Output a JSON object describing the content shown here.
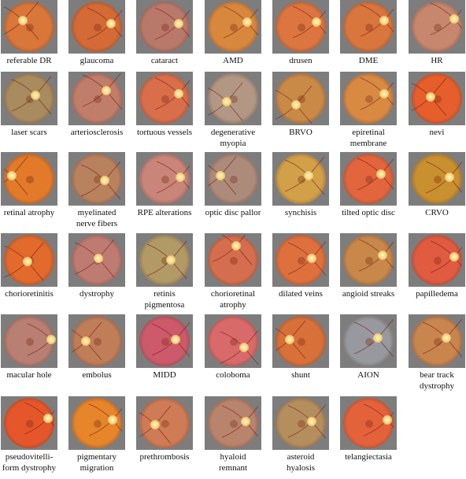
{
  "figure": {
    "images": [
      {
        "label_lines": [
          "referable DR"
        ],
        "color": "#d9763a",
        "icon": "fundus-photo"
      },
      {
        "label_lines": [
          "glaucoma"
        ],
        "color": "#d46a35",
        "icon": "fundus-photo"
      },
      {
        "label_lines": [
          "cataract"
        ],
        "color": "#b9796a",
        "icon": "fundus-photo"
      },
      {
        "label_lines": [
          "AMD"
        ],
        "color": "#d8883c",
        "icon": "fundus-photo"
      },
      {
        "label_lines": [
          "drusen"
        ],
        "color": "#dc7540",
        "icon": "fundus-photo"
      },
      {
        "label_lines": [
          "DME"
        ],
        "color": "#d9763e",
        "icon": "fundus-photo"
      },
      {
        "label_lines": [
          "HR"
        ],
        "color": "#c6876e",
        "icon": "fundus-photo"
      },
      {
        "label_lines": [
          "laser scars"
        ],
        "color": "#a88b5e",
        "icon": "fundus-photo"
      },
      {
        "label_lines": [
          "arteriosclerosis"
        ],
        "color": "#c07d6a",
        "icon": "fundus-photo"
      },
      {
        "label_lines": [
          "tortuous vessels"
        ],
        "color": "#d86e4a",
        "icon": "fundus-photo"
      },
      {
        "label_lines": [
          "degenerative",
          "myopia"
        ],
        "color": "#b29884",
        "icon": "fundus-photo"
      },
      {
        "label_lines": [
          "BRVO"
        ],
        "color": "#c98a48",
        "icon": "fundus-photo"
      },
      {
        "label_lines": [
          "epiretinal",
          "membrane"
        ],
        "color": "#d98a42",
        "icon": "fundus-photo"
      },
      {
        "label_lines": [
          "nevi"
        ],
        "color": "#e55e2c",
        "icon": "fundus-photo"
      },
      {
        "label_lines": [
          "retinal atrophy"
        ],
        "color": "#e27a2a",
        "icon": "fundus-photo"
      },
      {
        "label_lines": [
          "myelinated",
          "nerve fibers"
        ],
        "color": "#b9825e",
        "icon": "fundus-photo"
      },
      {
        "label_lines": [
          "RPE alterations"
        ],
        "color": "#c98579",
        "icon": "fundus-photo"
      },
      {
        "label_lines": [
          "optic disc pallor"
        ],
        "color": "#ad8b7b",
        "icon": "fundus-photo"
      },
      {
        "label_lines": [
          "synchisis"
        ],
        "color": "#d2a048",
        "icon": "fundus-photo"
      },
      {
        "label_lines": [
          "tilted optic disc"
        ],
        "color": "#e2653e",
        "icon": "fundus-photo"
      },
      {
        "label_lines": [
          "CRVO"
        ],
        "color": "#c8902f",
        "icon": "fundus-photo"
      },
      {
        "label_lines": [
          "chorioretinitis"
        ],
        "color": "#e16a2c",
        "icon": "fundus-photo"
      },
      {
        "label_lines": [
          "dystrophy"
        ],
        "color": "#bd7b72",
        "icon": "fundus-photo"
      },
      {
        "label_lines": [
          "retinis",
          "pigmentosa"
        ],
        "color": "#b29a66",
        "icon": "fundus-photo"
      },
      {
        "label_lines": [
          "chorioretinal",
          "atrophy"
        ],
        "color": "#d56e4e",
        "icon": "fundus-photo"
      },
      {
        "label_lines": [
          "dilated veins"
        ],
        "color": "#de703e",
        "icon": "fundus-photo"
      },
      {
        "label_lines": [
          "angioid streaks"
        ],
        "color": "#c7884a",
        "icon": "fundus-photo"
      },
      {
        "label_lines": [
          "papilledema"
        ],
        "color": "#e05b40",
        "icon": "fundus-photo"
      },
      {
        "label_lines": [
          "macular hole"
        ],
        "color": "#b87f72",
        "icon": "fundus-photo"
      },
      {
        "label_lines": [
          "embolus"
        ],
        "color": "#bf7e58",
        "icon": "fundus-photo"
      },
      {
        "label_lines": [
          "MIDD"
        ],
        "color": "#cc5a6a",
        "icon": "fundus-photo"
      },
      {
        "label_lines": [
          "coloboma"
        ],
        "color": "#d96a6a",
        "icon": "fundus-photo"
      },
      {
        "label_lines": [
          "shunt"
        ],
        "color": "#d8703a",
        "icon": "fundus-photo"
      },
      {
        "label_lines": [
          "AION"
        ],
        "color": "#97999f",
        "icon": "fundus-photo"
      },
      {
        "label_lines": [
          "bear track",
          "dystrophy"
        ],
        "color": "#c9854e",
        "icon": "fundus-photo"
      },
      {
        "label_lines": [
          "pseudovitelli-",
          "form dystrophy"
        ],
        "color": "#e5572a",
        "icon": "fundus-photo"
      },
      {
        "label_lines": [
          "pigmentary",
          "migration"
        ],
        "color": "#e7852a",
        "icon": "fundus-photo"
      },
      {
        "label_lines": [
          "prethrombosis"
        ],
        "color": "#cf7b56",
        "icon": "fundus-photo"
      },
      {
        "label_lines": [
          "hyaloid",
          "remnant"
        ],
        "color": "#b9846c",
        "icon": "fundus-photo"
      },
      {
        "label_lines": [
          "asteroid",
          "hyalosis"
        ],
        "color": "#b58e5e",
        "icon": "fundus-photo"
      },
      {
        "label_lines": [
          "telangiectasia"
        ],
        "color": "#e4623a",
        "icon": "fundus-photo"
      }
    ]
  }
}
